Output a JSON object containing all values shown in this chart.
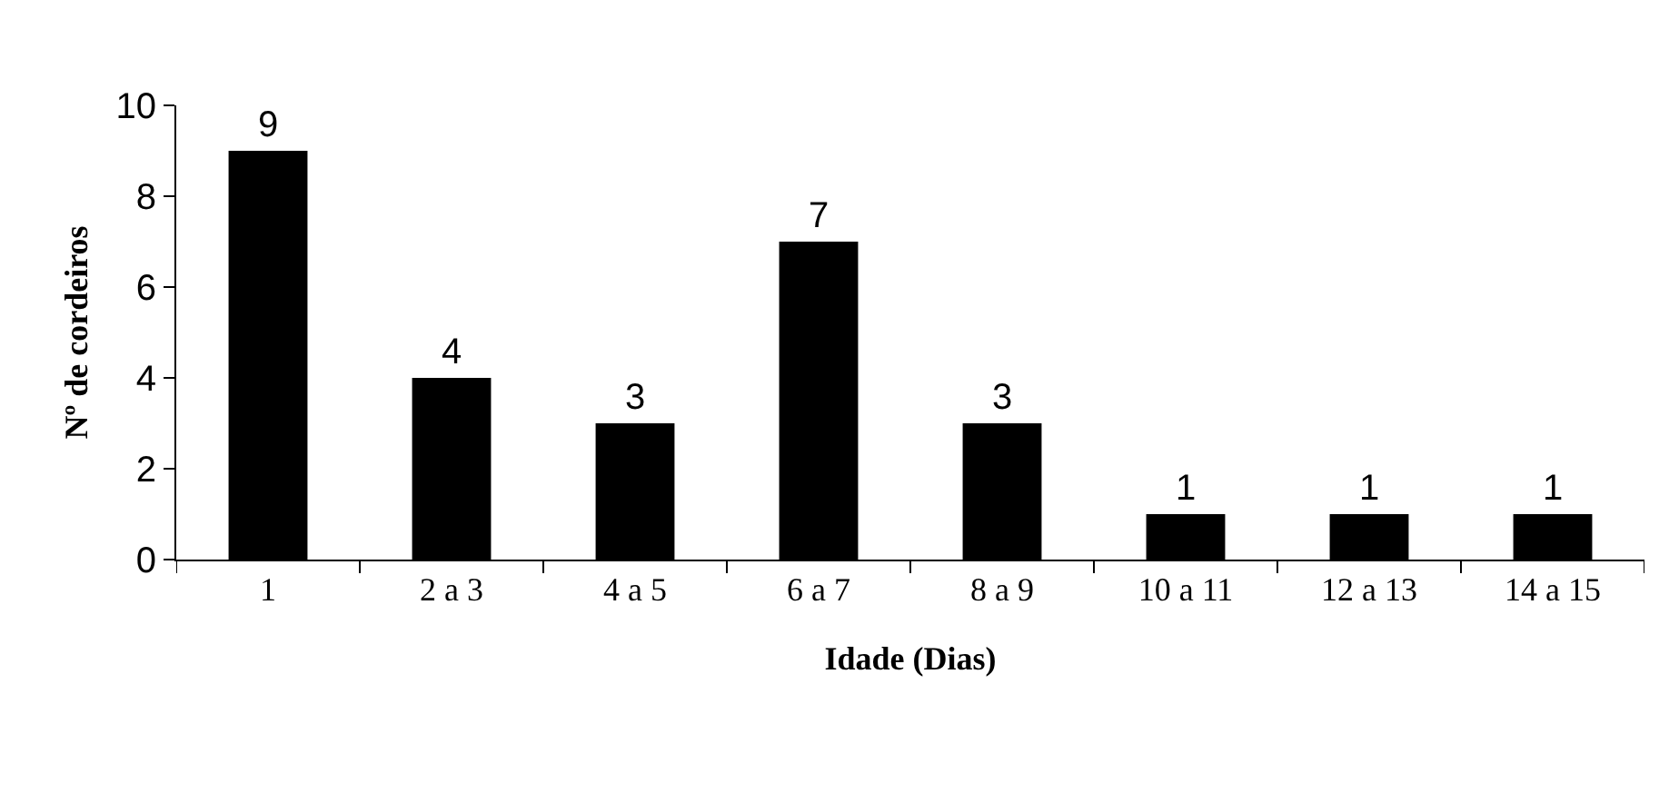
{
  "chart_data": {
    "type": "bar",
    "xlabel": "Idade (Dias)",
    "ylabel": "Nº de cordeiros",
    "categories": [
      "1",
      "2 a 3",
      "4 a 5",
      "6 a 7",
      "8 a 9",
      "10 a 11",
      "12 a 13",
      "14 a 15"
    ],
    "values": [
      9,
      4,
      3,
      7,
      3,
      1,
      1,
      1
    ],
    "color": "#000000",
    "ylim": [
      0,
      10
    ],
    "yticks": [
      0,
      2,
      4,
      6,
      8,
      10
    ],
    "data_labels": true
  }
}
